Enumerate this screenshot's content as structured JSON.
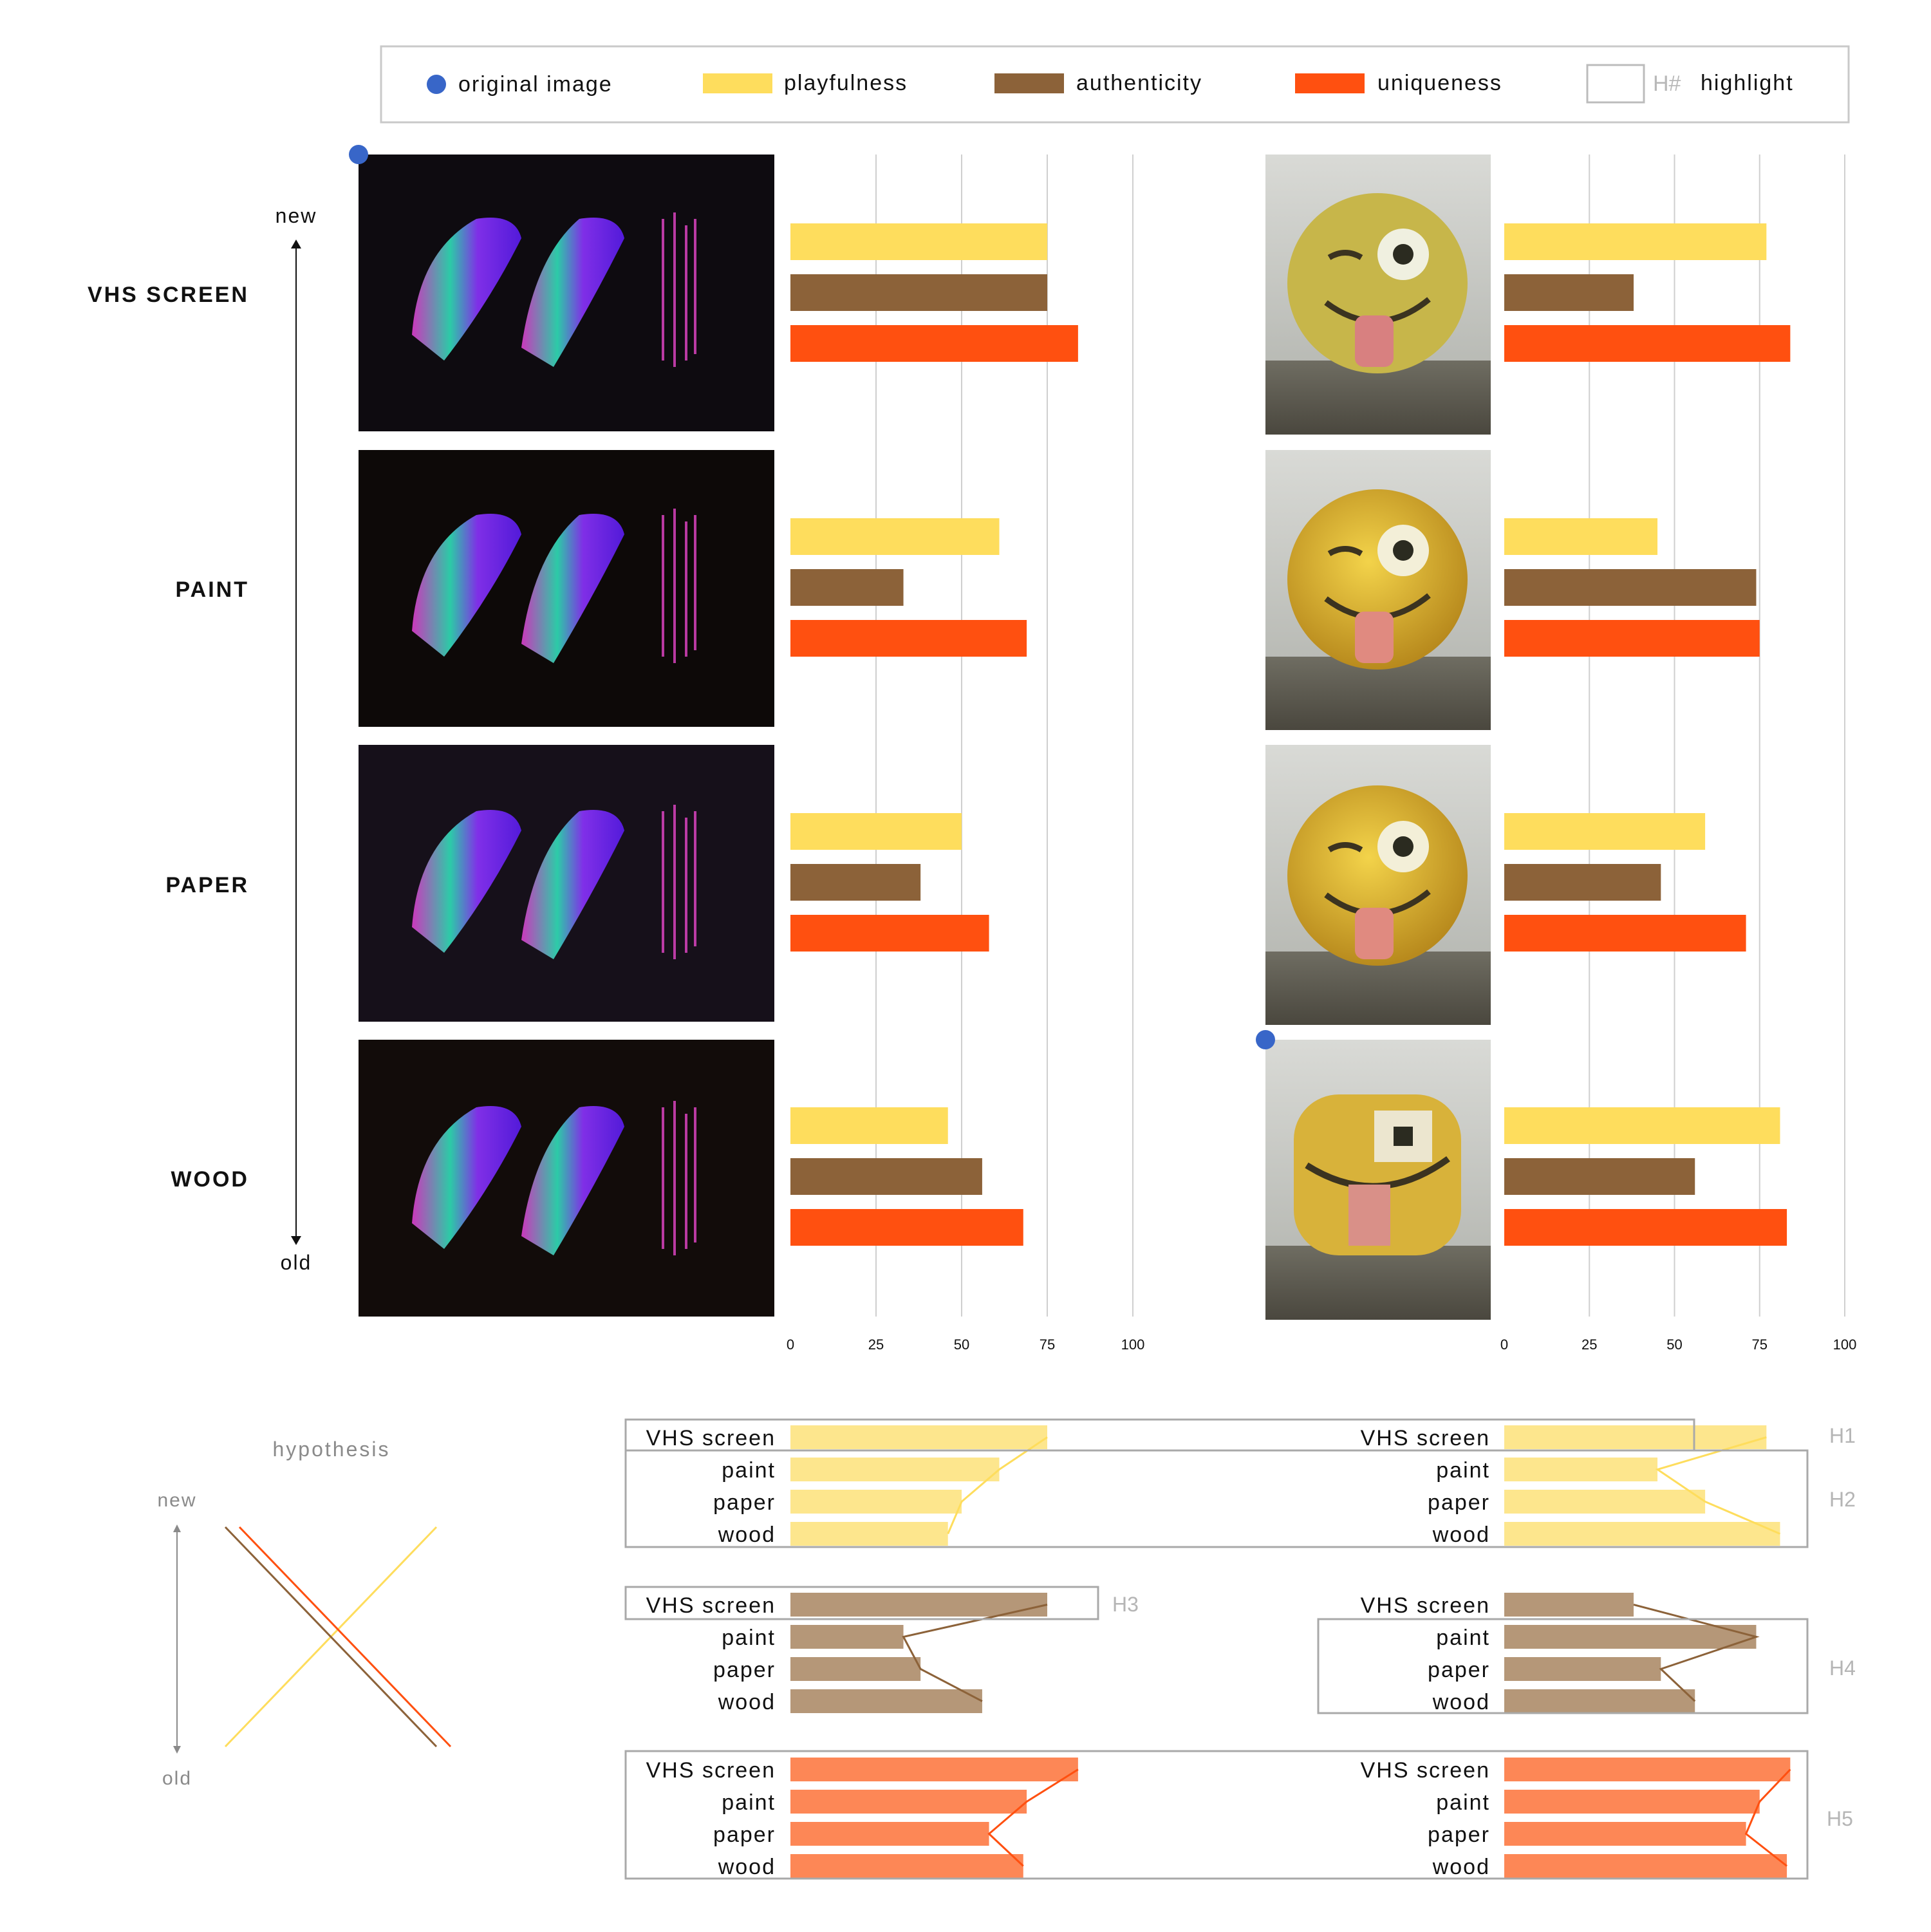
{
  "legend": {
    "original_label": "original image",
    "playfulness_label": "playfulness",
    "authenticity_label": "authenticity",
    "uniqueness_label": "uniqueness",
    "highlight_code": "H#",
    "highlight_label": "highlight"
  },
  "colors": {
    "playfulness": "#FEDD5D",
    "authenticity": "#8C6239",
    "uniqueness": "#FF5010",
    "playfulness_light": "#FDE68D",
    "authenticity_light": "#B59778",
    "uniqueness_light": "#FD8756",
    "original_marker": "#3866C8"
  },
  "axis": {
    "new_label": "new",
    "old_label": "old"
  },
  "rows": [
    {
      "label": "VHS SCREEN",
      "short": "VHS screen"
    },
    {
      "label": "PAINT",
      "short": "paint"
    },
    {
      "label": "PAPER",
      "short": "paper"
    },
    {
      "label": "WOOD",
      "short": "wood"
    }
  ],
  "hypothesis": {
    "title": "hypothesis",
    "new_label": "new",
    "old_label": "old"
  },
  "chart_data": [
    {
      "type": "bar",
      "categories": [
        "VHS SCREEN",
        "PAINT",
        "PAPER",
        "WOOD"
      ],
      "series": [
        {
          "name": "playfulness",
          "values": [
            75,
            61,
            50,
            46
          ]
        },
        {
          "name": "authenticity",
          "values": [
            75,
            33,
            38,
            56
          ]
        },
        {
          "name": "uniqueness",
          "values": [
            84,
            69,
            58,
            68
          ]
        }
      ],
      "xlim": [
        0,
        100
      ],
      "xticks": [
        "0",
        "25",
        "50",
        "75",
        "100"
      ]
    },
    {
      "type": "bar",
      "categories": [
        "VHS SCREEN",
        "PAINT",
        "PAPER",
        "WOOD"
      ],
      "series": [
        {
          "name": "playfulness",
          "values": [
            77,
            45,
            59,
            81
          ]
        },
        {
          "name": "authenticity",
          "values": [
            38,
            74,
            46,
            56
          ]
        },
        {
          "name": "uniqueness",
          "values": [
            84,
            75,
            71,
            83
          ]
        }
      ],
      "xlim": [
        0,
        100
      ],
      "xticks": [
        "0",
        "25",
        "50",
        "75",
        "100"
      ]
    }
  ],
  "highlights": [
    "H1",
    "H2",
    "H3",
    "H4",
    "H5"
  ]
}
